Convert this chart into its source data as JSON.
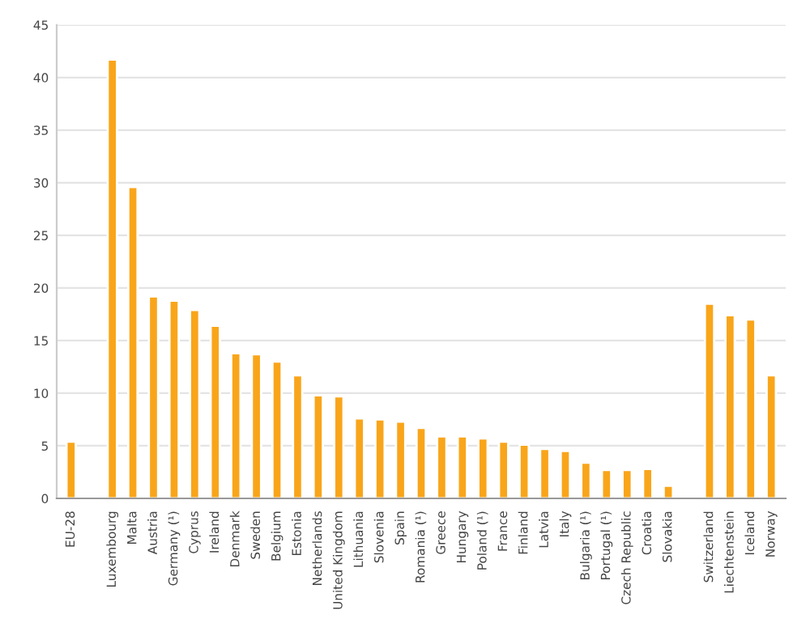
{
  "chart_data": {
    "type": "bar",
    "categories": [
      "EU-28",
      null,
      "Luxembourg",
      "Malta",
      "Austria",
      "Germany (¹)",
      "Cyprus",
      "Ireland",
      "Denmark",
      "Sweden",
      "Belgium",
      "Estonia",
      "Netherlands",
      "United Kingdom",
      "Lithuania",
      "Slovenia",
      "Spain",
      "Romania (¹)",
      "Greece",
      "Hungary",
      "Poland (¹)",
      "France",
      "Finland",
      "Latvia",
      "Italy",
      "Bulgaria (¹)",
      "Portugal (¹)",
      "Czech Republic",
      "Croatia",
      "Slovakia",
      null,
      "Switzerland",
      "Liechtenstein",
      "Iceland",
      "Norway"
    ],
    "values": [
      5.4,
      null,
      41.7,
      29.6,
      19.2,
      18.8,
      17.9,
      16.4,
      13.8,
      13.7,
      13.0,
      11.7,
      9.8,
      9.7,
      7.6,
      7.5,
      7.3,
      6.7,
      5.9,
      5.9,
      5.7,
      5.4,
      5.1,
      4.7,
      4.5,
      3.4,
      2.7,
      2.7,
      2.8,
      1.2,
      null,
      18.5,
      17.4,
      17.0,
      11.7
    ],
    "color": "#f9a51a",
    "ylim": [
      0,
      45
    ],
    "yticks": [
      0,
      5,
      10,
      15,
      20,
      25,
      30,
      35,
      40,
      45
    ],
    "grid": "y"
  }
}
